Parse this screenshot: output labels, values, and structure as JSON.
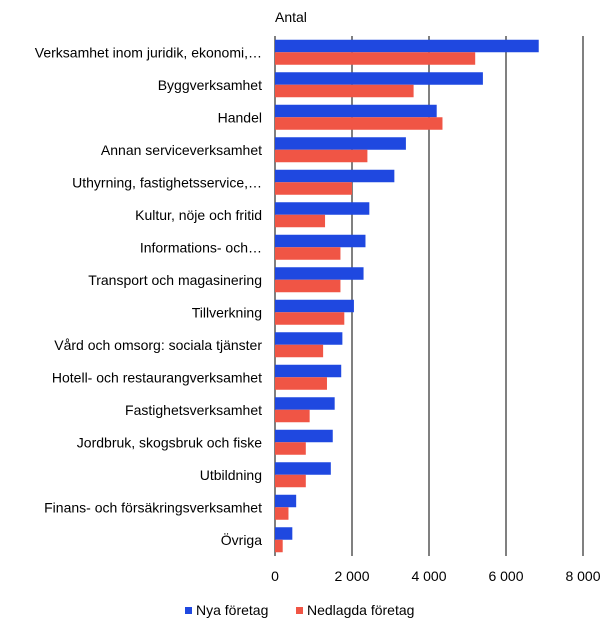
{
  "chart_data": {
    "type": "bar",
    "orientation": "horizontal",
    "ylabel": "Antal",
    "categories": [
      "Verksamhet inom juridik, ekonomi,…",
      "Byggverksamhet",
      "Handel",
      "Annan serviceverksamhet",
      "Uthyrning, fastighetsservice,…",
      "Kultur, nöje och fritid",
      "Informations- och…",
      "Transport och magasinering",
      "Tillverkning",
      "Vård och omsorg: sociala tjänster",
      "Hotell- och restaurangverksamhet",
      "Fastighetsverksamhet",
      "Jordbruk, skogsbruk och fiske",
      "Utbildning",
      "Finans- och försäkringsverksamhet",
      "Övriga"
    ],
    "series": [
      {
        "name": "Nya företag",
        "color": "#1f48e0",
        "values": [
          6850,
          5400,
          4200,
          3400,
          3100,
          2450,
          2350,
          2300,
          2050,
          1750,
          1720,
          1550,
          1500,
          1450,
          550,
          450
        ]
      },
      {
        "name": "Nedlagda företag",
        "color": "#f05545",
        "values": [
          5200,
          3600,
          4350,
          2400,
          2000,
          1300,
          1700,
          1700,
          1800,
          1250,
          1350,
          900,
          800,
          800,
          350,
          200
        ]
      }
    ],
    "xlim": [
      0,
      8000
    ],
    "xticks": [
      0,
      2000,
      4000,
      6000,
      8000
    ],
    "xtick_labels": [
      "0",
      "2 000",
      "4 000",
      "6 000",
      "8 000"
    ],
    "grid": true,
    "legend_position": "bottom"
  }
}
